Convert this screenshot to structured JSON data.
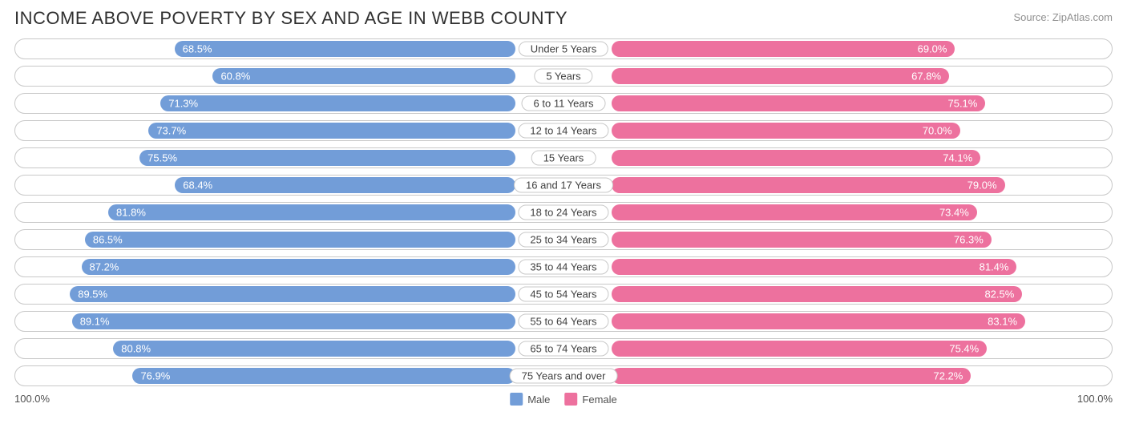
{
  "title": "INCOME ABOVE POVERTY BY SEX AND AGE IN WEBB COUNTY",
  "source": "Source: ZipAtlas.com",
  "colors": {
    "male_bar": "#729dd8",
    "female_bar": "#ed719e",
    "row_border": "#c8c8c8",
    "background": "#ffffff",
    "title_text": "#303030",
    "source_text": "#909090",
    "label_text": "#404040",
    "bar_text": "#ffffff"
  },
  "axis": {
    "left": "100.0%",
    "right": "100.0%",
    "max": 100.0
  },
  "legend": {
    "male": "Male",
    "female": "Female"
  },
  "rows": [
    {
      "category": "Under 5 Years",
      "male": 68.5,
      "female": 69.0,
      "male_label": "68.5%",
      "female_label": "69.0%"
    },
    {
      "category": "5 Years",
      "male": 60.8,
      "female": 67.8,
      "male_label": "60.8%",
      "female_label": "67.8%"
    },
    {
      "category": "6 to 11 Years",
      "male": 71.3,
      "female": 75.1,
      "male_label": "71.3%",
      "female_label": "75.1%"
    },
    {
      "category": "12 to 14 Years",
      "male": 73.7,
      "female": 70.0,
      "male_label": "73.7%",
      "female_label": "70.0%"
    },
    {
      "category": "15 Years",
      "male": 75.5,
      "female": 74.1,
      "male_label": "75.5%",
      "female_label": "74.1%"
    },
    {
      "category": "16 and 17 Years",
      "male": 68.4,
      "female": 79.0,
      "male_label": "68.4%",
      "female_label": "79.0%"
    },
    {
      "category": "18 to 24 Years",
      "male": 81.8,
      "female": 73.4,
      "male_label": "81.8%",
      "female_label": "73.4%"
    },
    {
      "category": "25 to 34 Years",
      "male": 86.5,
      "female": 76.3,
      "male_label": "86.5%",
      "female_label": "76.3%"
    },
    {
      "category": "35 to 44 Years",
      "male": 87.2,
      "female": 81.4,
      "male_label": "87.2%",
      "female_label": "81.4%"
    },
    {
      "category": "45 to 54 Years",
      "male": 89.5,
      "female": 82.5,
      "male_label": "89.5%",
      "female_label": "82.5%"
    },
    {
      "category": "55 to 64 Years",
      "male": 89.1,
      "female": 83.1,
      "male_label": "89.1%",
      "female_label": "83.1%"
    },
    {
      "category": "65 to 74 Years",
      "male": 80.8,
      "female": 75.4,
      "male_label": "80.8%",
      "female_label": "75.4%"
    },
    {
      "category": "75 Years and over",
      "male": 76.9,
      "female": 72.2,
      "male_label": "76.9%",
      "female_label": "72.2%"
    }
  ]
}
